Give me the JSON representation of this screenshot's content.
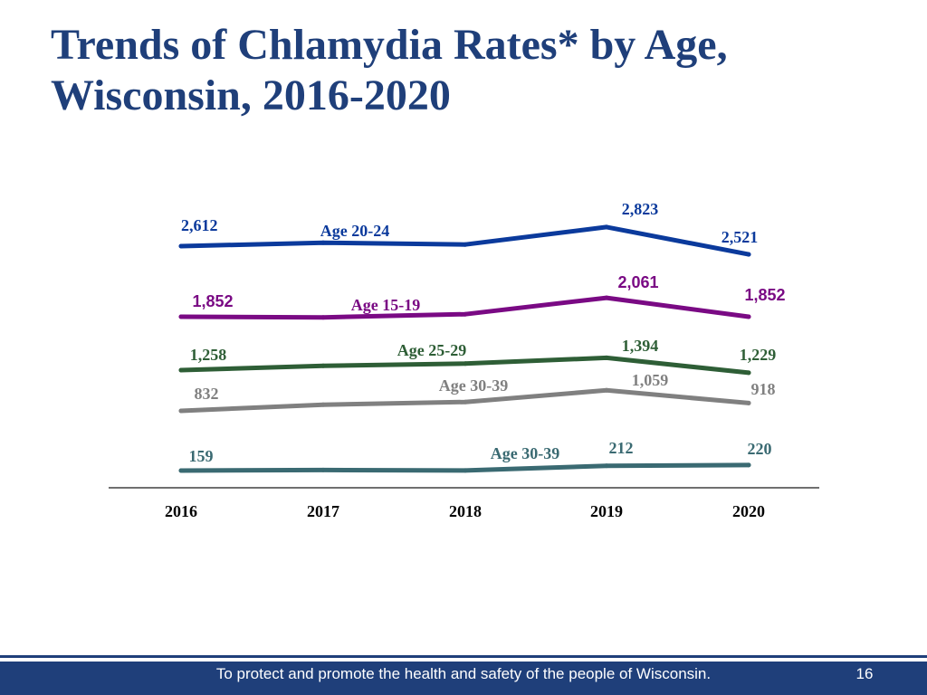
{
  "slide": {
    "title": "Trends of Chlamydia Rates* by Age, Wisconsin, 2016-2020",
    "footer_text": "To protect and promote the health and safety of the people of Wisconsin.",
    "page_number": "16"
  },
  "chart_data": {
    "type": "line",
    "title": "Trends of Chlamydia Rates* by Age, Wisconsin, 2016-2020",
    "xlabel": "",
    "ylabel": "",
    "categories": [
      "2016",
      "2017",
      "2018",
      "2019",
      "2020"
    ],
    "grid": false,
    "series": [
      {
        "name": "Age 20-24",
        "label": "Age 20-24",
        "color": "#0b3a9c",
        "values": [
          2612,
          2650,
          2630,
          2823,
          2521
        ],
        "end_labels": [
          "2,612",
          "2,823",
          "2,521"
        ],
        "font": "serif"
      },
      {
        "name": "Age 15-19",
        "label": "Age 15-19",
        "color": "#7a0a84",
        "values": [
          1852,
          1845,
          1880,
          2061,
          1852
        ],
        "end_labels": [
          "1,852",
          "2,061",
          "1,852"
        ],
        "font": "sans"
      },
      {
        "name": "Age 25-29",
        "label": "Age 25-29",
        "color": "#2e5e36",
        "values": [
          1258,
          1305,
          1330,
          1394,
          1229
        ],
        "end_labels": [
          "1,258",
          "1,394",
          "1,229"
        ],
        "font": "serif"
      },
      {
        "name": "Age 30-39",
        "label": "Age 30-39",
        "color": "#808080",
        "values": [
          832,
          900,
          930,
          1059,
          918
        ],
        "end_labels": [
          "832",
          "1,059",
          "918"
        ],
        "font": "serif"
      },
      {
        "name": "Age 30-39",
        "label": "Age 30-39",
        "color": "#3a6a72",
        "values": [
          159,
          165,
          160,
          212,
          220
        ],
        "end_labels": [
          "159",
          "212",
          "220"
        ],
        "font": "serif"
      }
    ]
  }
}
